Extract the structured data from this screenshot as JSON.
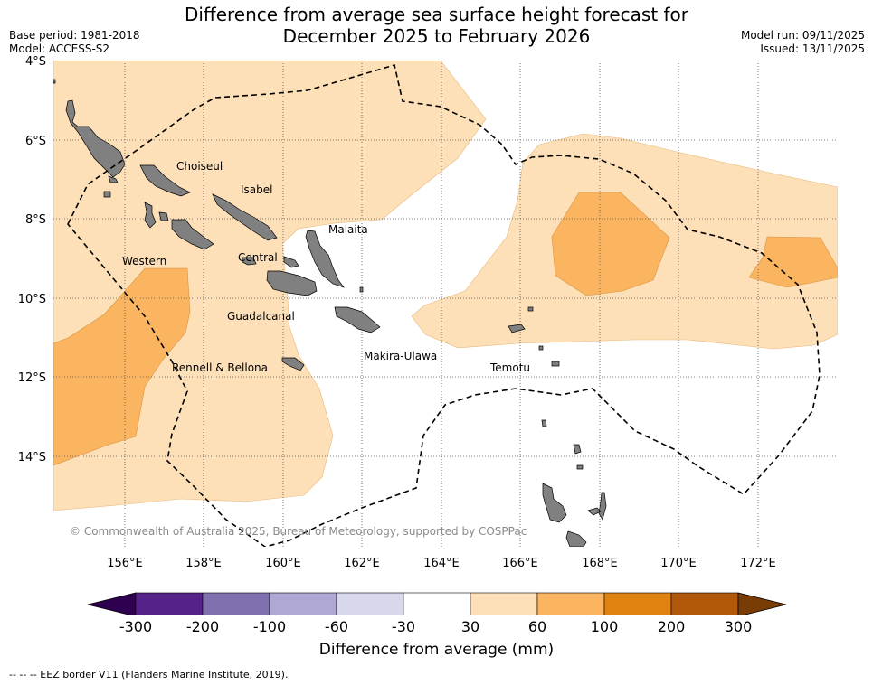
{
  "header": {
    "title_line1": "Difference from average sea surface height forecast for",
    "title_line2": "December 2025 to February 2026",
    "base_period": "Base period: 1981-2018",
    "model": "Model: ACCESS-S2",
    "model_run": "Model run: 09/11/2025",
    "issued": "Issued: 13/11/2025"
  },
  "map": {
    "lat_ticks": [
      "4°S",
      "6°S",
      "8°S",
      "10°S",
      "12°S",
      "14°S"
    ],
    "lon_ticks": [
      "156°E",
      "158°E",
      "160°E",
      "162°E",
      "164°E",
      "166°E",
      "168°E",
      "170°E",
      "172°E"
    ],
    "places": [
      "Choiseul",
      "Isabel",
      "Malaita",
      "Western",
      "Central",
      "Guadalcanal",
      "Makira-Ulawa",
      "Rennell & Bellona",
      "Temotu"
    ],
    "copyright": "© Commonwealth of Australia 2025, Bureau of Meteorology, supported by COSPPac",
    "colors": {
      "land": "#808080",
      "band_30_60": "#fde0b8",
      "band_60_100": "#fbb560",
      "eez_border": "#000000"
    }
  },
  "colorbar": {
    "title": "Difference from average (mm)",
    "labels": [
      "-300",
      "-200",
      "-100",
      "-60",
      "-30",
      "30",
      "60",
      "100",
      "200",
      "300"
    ],
    "colors": [
      "#2d0050",
      "#55228a",
      "#8070b0",
      "#b0a8d4",
      "#d8d8ec",
      "#ffffff",
      "#fde0b8",
      "#fbb560",
      "#e0820f",
      "#b05808",
      "#7a3c05"
    ]
  },
  "footnote": "--  --  -- EEZ border V11 (Flanders Marine Institute, 2019)."
}
